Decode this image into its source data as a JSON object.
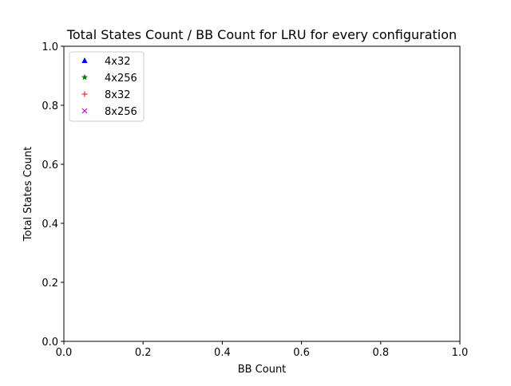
{
  "chart_data": {
    "type": "scatter",
    "title": "Total States Count / BB Count for LRU for every configuration",
    "xlabel": "BB Count",
    "ylabel": "Total States Count",
    "xlim": [
      0.0,
      1.0
    ],
    "ylim": [
      0.0,
      1.0
    ],
    "xticks": [
      "0.0",
      "0.2",
      "0.4",
      "0.6",
      "0.8",
      "1.0"
    ],
    "yticks": [
      "0.0",
      "0.2",
      "0.4",
      "0.6",
      "0.8",
      "1.0"
    ],
    "grid": false,
    "legend_position": "upper-left",
    "series": [
      {
        "name": "4x32",
        "marker": "triangle-up",
        "color": "#0000ff",
        "x": [],
        "y": []
      },
      {
        "name": "4x256",
        "marker": "star",
        "color": "#008000",
        "x": [],
        "y": []
      },
      {
        "name": "8x32",
        "marker": "plus",
        "color": "#ff0000",
        "x": [],
        "y": []
      },
      {
        "name": "8x256",
        "marker": "x",
        "color": "#bf00bf",
        "x": [],
        "y": []
      }
    ]
  }
}
